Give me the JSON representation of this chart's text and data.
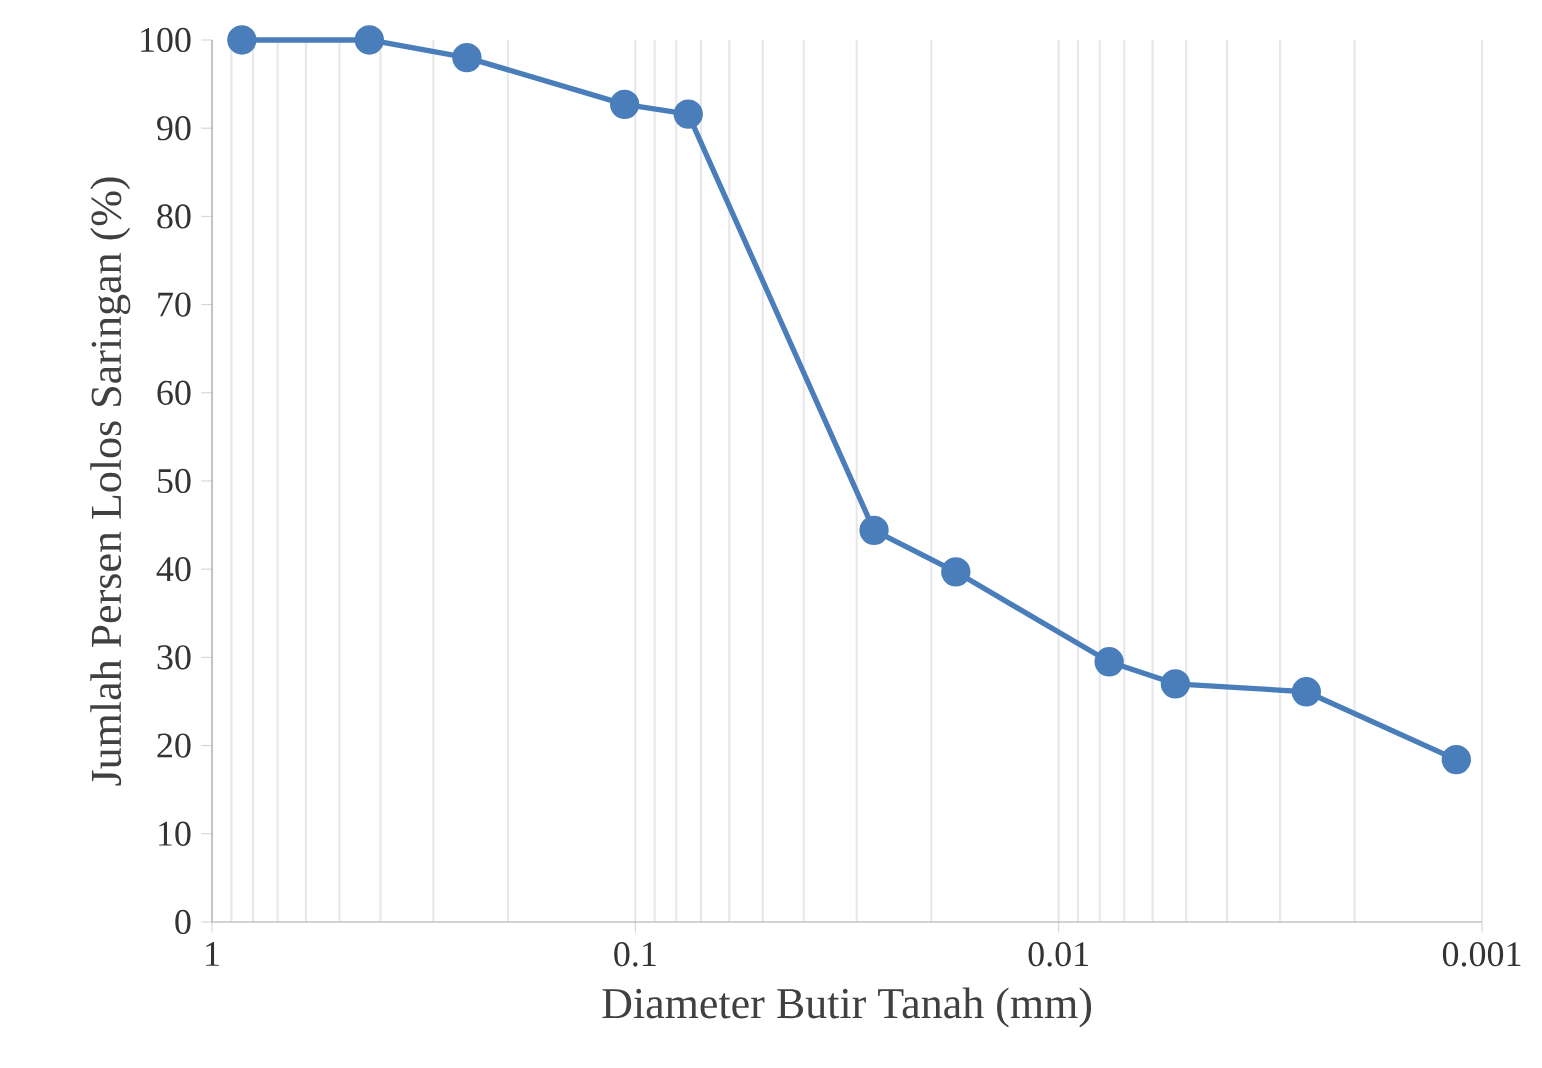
{
  "chart_data": {
    "type": "line",
    "xlabel": "Diameter Butir Tanah (mm)",
    "ylabel": "Jumlah Persen Lolos Saringan (%)",
    "x": [
      0.85,
      0.425,
      0.25,
      0.106,
      0.075,
      0.0273,
      0.0175,
      0.0076,
      0.0053,
      0.0026,
      0.00115
    ],
    "values": [
      100,
      100,
      98,
      92.7,
      91.6,
      44.4,
      39.7,
      29.5,
      27,
      26.1,
      18.4
    ],
    "color": "#4a7ebb",
    "marker": "circle",
    "log": "x",
    "grid": "x",
    "xlim": [
      1,
      0.001
    ],
    "ylim": [
      0,
      100
    ],
    "xticks": [
      1,
      0.1,
      0.01,
      0.001
    ],
    "yticks": [
      0,
      10,
      20,
      30,
      40,
      50,
      60,
      70,
      80,
      90,
      100
    ]
  }
}
